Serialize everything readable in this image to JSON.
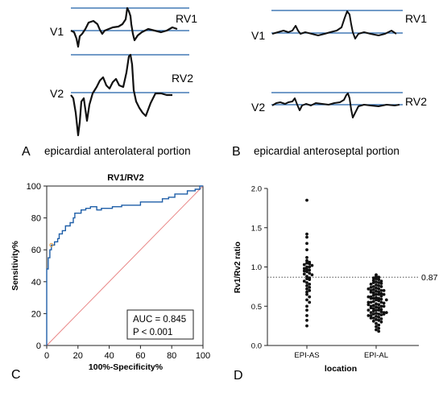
{
  "panels": {
    "a": {
      "letter": "A",
      "caption": "epicardial anterolateral portion",
      "lead1": "V1",
      "lead2": "V2",
      "label1": "RV1",
      "label2": "RV2"
    },
    "b": {
      "letter": "B",
      "caption": "epicardial anteroseptal portion",
      "lead1": "V1",
      "lead2": "V2",
      "label1": "RV1",
      "label2": "RV2"
    },
    "c": {
      "letter": "C"
    },
    "d": {
      "letter": "D"
    }
  },
  "chart_data": [
    {
      "type": "line",
      "title": "RV1/RV2",
      "xlabel": "100%-Specificity%",
      "ylabel": "Sensitivity%",
      "xlim": [
        0,
        100
      ],
      "ylim": [
        0,
        100
      ],
      "xticks": [
        "0",
        "20",
        "40",
        "60",
        "80",
        "100"
      ],
      "yticks": [
        "0",
        "20",
        "40",
        "60",
        "80",
        "100"
      ],
      "annotation_lines": [
        "AUC = 0.845",
        "P < 0.001"
      ],
      "colors": {
        "roc": "#1f5fa8",
        "reference": "#e88080",
        "cutoff": "#e8a040"
      },
      "series": [
        {
          "x": [
            0,
            0,
            1,
            1,
            2,
            2,
            3,
            3,
            5,
            5,
            7,
            7,
            8,
            8,
            10,
            10,
            12,
            12,
            15,
            15,
            17,
            17,
            18,
            18,
            22,
            22,
            25,
            25,
            28,
            28,
            32,
            32,
            35,
            35,
            42,
            42,
            48,
            48,
            55,
            55,
            60,
            60,
            67,
            67,
            74,
            74,
            78,
            78,
            82,
            82,
            86,
            86,
            90,
            90,
            95,
            95,
            98,
            98,
            100
          ],
          "y": [
            0,
            48,
            48,
            55,
            55,
            60,
            60,
            63,
            63,
            65,
            65,
            67,
            67,
            70,
            70,
            72,
            72,
            75,
            75,
            77,
            77,
            80,
            80,
            83,
            83,
            85,
            85,
            86,
            86,
            87,
            87,
            85,
            85,
            86,
            86,
            87,
            87,
            88,
            88,
            88,
            88,
            90,
            90,
            90,
            90,
            92,
            92,
            93,
            93,
            95,
            95,
            95,
            95,
            97,
            97,
            98,
            98,
            100,
            100
          ]
        }
      ],
      "reference_line": {
        "x": [
          0,
          100
        ],
        "y": [
          0,
          100
        ]
      },
      "cutoff_point": {
        "x": 3,
        "y": 63
      }
    },
    {
      "type": "scatter",
      "xlabel": "location",
      "ylabel": "Rv1/Rv2 ratio",
      "categories": [
        "EPI-AS",
        "EPI-AL"
      ],
      "ylim": [
        0,
        2.0
      ],
      "yticks": [
        "0.0",
        "0.5",
        "1.0",
        "1.5",
        "2.0"
      ],
      "reference_line": {
        "y": 0.87,
        "label": "0.87",
        "style": "dotted"
      },
      "series": [
        {
          "values": [
            1.85,
            1.42,
            1.38,
            1.3,
            1.22,
            1.12,
            1.08,
            1.06,
            1.05,
            1.04,
            1.03,
            1.02,
            1.0,
            1.0,
            0.98,
            0.97,
            0.96,
            0.95,
            0.94,
            0.92,
            0.91,
            0.9,
            0.88,
            0.86,
            0.85,
            0.84,
            0.82,
            0.8,
            0.78,
            0.76,
            0.74,
            0.72,
            0.7,
            0.68,
            0.65,
            0.62,
            0.58,
            0.55,
            0.5,
            0.45,
            0.38,
            0.32,
            0.25
          ]
        },
        {
          "values": [
            0.9,
            0.88,
            0.87,
            0.86,
            0.85,
            0.84,
            0.83,
            0.82,
            0.81,
            0.8,
            0.8,
            0.79,
            0.78,
            0.77,
            0.76,
            0.75,
            0.75,
            0.74,
            0.73,
            0.72,
            0.71,
            0.7,
            0.7,
            0.69,
            0.68,
            0.67,
            0.66,
            0.65,
            0.65,
            0.64,
            0.63,
            0.62,
            0.61,
            0.6,
            0.6,
            0.59,
            0.58,
            0.57,
            0.56,
            0.55,
            0.55,
            0.54,
            0.53,
            0.52,
            0.51,
            0.5,
            0.5,
            0.49,
            0.48,
            0.47,
            0.46,
            0.45,
            0.45,
            0.44,
            0.43,
            0.42,
            0.42,
            0.41,
            0.4,
            0.4,
            0.39,
            0.38,
            0.37,
            0.36,
            0.35,
            0.34,
            0.33,
            0.32,
            0.31,
            0.3,
            0.28,
            0.26,
            0.24,
            0.22,
            0.2,
            0.18,
            0.5,
            0.55,
            0.6,
            0.65,
            0.7,
            0.45,
            0.4,
            0.35,
            0.48,
            0.52,
            0.58,
            0.62,
            0.68,
            0.72,
            0.42,
            0.38
          ]
        }
      ]
    }
  ]
}
